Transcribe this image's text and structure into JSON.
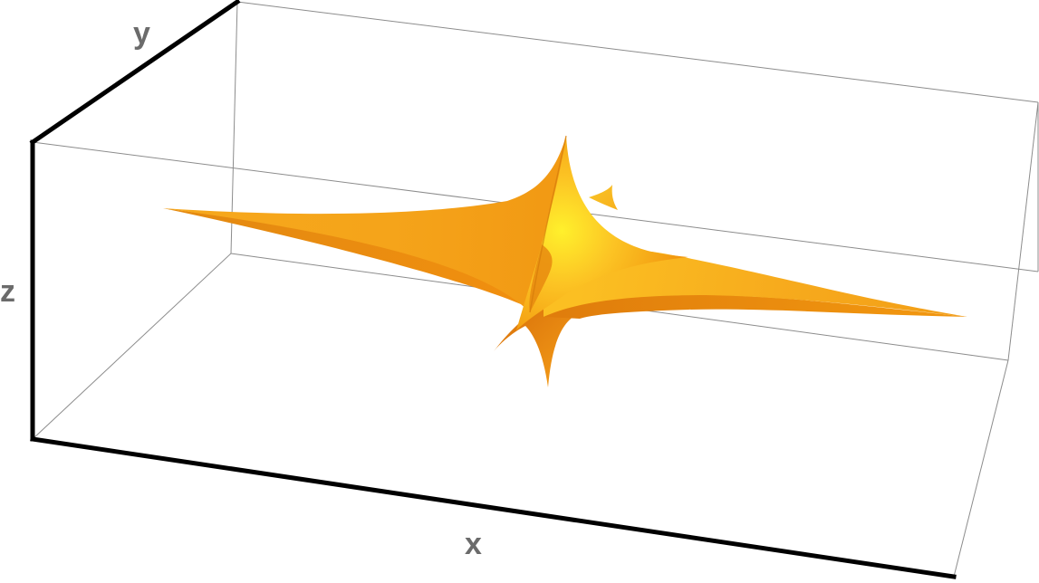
{
  "figure": {
    "type": "3d-surface-plot",
    "surface_color": "#f5a21b",
    "surface_highlight_color": "#fff12a",
    "surface_shadow_color": "#d97a0a",
    "box_line_color": "#8c8c8c",
    "axis_line_color": "#000000",
    "axis_label_color": "#6b6b6b"
  },
  "axes": {
    "x_label": "x",
    "y_label": "y",
    "z_label": "z"
  }
}
